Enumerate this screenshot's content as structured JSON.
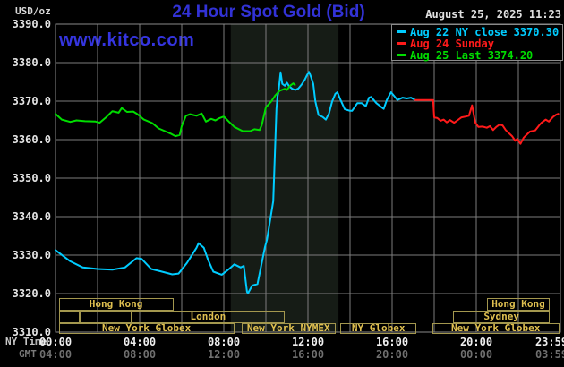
{
  "header": {
    "unit_label": "USD/oz",
    "title": "24 Hour Spot Gold (Bid)",
    "datetime": "August 25, 2025 11:23",
    "watermark": "www.kitco.com"
  },
  "legend": {
    "items": [
      {
        "label": "Aug 22 NY close 3370.30",
        "color": "#00ccff"
      },
      {
        "label": "Aug 24 Sunday",
        "color": "#ff1a1a"
      },
      {
        "label": "Aug 25 Last 3374.20",
        "color": "#00dd00"
      }
    ]
  },
  "axes": {
    "y_ticks": [
      "3390.0",
      "3380.0",
      "3370.0",
      "3360.0",
      "3350.0",
      "3340.0",
      "3330.0",
      "3320.0",
      "3310.0"
    ],
    "x_tick_hours": [
      0,
      4,
      8,
      12,
      16,
      20,
      23.983
    ],
    "x_rows": [
      {
        "label": "NY Time",
        "ticks": [
          "00:00",
          "04:00",
          "08:00",
          "12:00",
          "16:00",
          "20:00",
          "23:59"
        ]
      },
      {
        "label": "GMT",
        "ticks": [
          "04:00",
          "08:00",
          "12:00",
          "16:00",
          "20:00",
          "00:00",
          "03:59"
        ]
      }
    ]
  },
  "sessions": [
    {
      "row": 0,
      "label": "Hong Kong",
      "start_h": 0.15,
      "end_h": 5.6
    },
    {
      "row": 0,
      "label": "Hong Kong",
      "start_h": 20.5,
      "end_h": 23.5
    },
    {
      "row": 1,
      "label": "",
      "start_h": 0.15,
      "end_h": 1.15
    },
    {
      "row": 1,
      "label": "",
      "start_h": 1.15,
      "end_h": 3.6
    },
    {
      "row": 1,
      "label": "London",
      "start_h": 3.6,
      "end_h": 10.9
    },
    {
      "row": 1,
      "label": "Sydney",
      "start_h": 18.9,
      "end_h": 23.5
    },
    {
      "row": 2,
      "label": "New York Globex",
      "start_h": 0.15,
      "end_h": 8.5
    },
    {
      "row": 2,
      "label": "New York NYMEX",
      "start_h": 8.85,
      "end_h": 13.3
    },
    {
      "row": 2,
      "label": "NY Globex",
      "start_h": 13.55,
      "end_h": 17.15
    },
    {
      "row": 2,
      "label": "New York Globex",
      "start_h": 17.9,
      "end_h": 23.95
    }
  ],
  "colors": {
    "grid": "#7d7d7d",
    "plot_border": "#8a8a8a",
    "highlight_band": "#161c16",
    "title_blue": "#3232d6"
  },
  "chart_data": {
    "type": "line",
    "title": "24 Hour Spot Gold (Bid)",
    "xlabel": "NY Time",
    "ylabel": "USD/oz",
    "x_axis": {
      "range_hours": [
        0,
        24
      ],
      "gridline_every_hours": 2,
      "label_every_hours": 4
    },
    "y_axis": {
      "range": [
        3310,
        3390
      ],
      "gridline_step": 10
    },
    "highlight_band_hours": [
      8.33,
      13.45
    ],
    "series": [
      {
        "name": "Aug 22 NY close 3370.30",
        "color": "#00ccff",
        "points": [
          [
            0,
            3331.3
          ],
          [
            0.7,
            3328.4
          ],
          [
            1.3,
            3326.8
          ],
          [
            2,
            3326.4
          ],
          [
            2.7,
            3326.2
          ],
          [
            3.3,
            3326.8
          ],
          [
            3.85,
            3329.2
          ],
          [
            4.1,
            3329
          ],
          [
            4.55,
            3326.4
          ],
          [
            5,
            3325.8
          ],
          [
            5.55,
            3325
          ],
          [
            5.85,
            3325.2
          ],
          [
            6.25,
            3328
          ],
          [
            6.7,
            3331.9
          ],
          [
            6.8,
            3333.1
          ],
          [
            7.05,
            3331.9
          ],
          [
            7.25,
            3328.8
          ],
          [
            7.5,
            3325.7
          ],
          [
            7.9,
            3324.9
          ],
          [
            8.25,
            3326.4
          ],
          [
            8.5,
            3327.6
          ],
          [
            8.8,
            3326.8
          ],
          [
            8.95,
            3327.2
          ],
          [
            9.1,
            3320.5
          ],
          [
            9.15,
            3320.1
          ],
          [
            9.35,
            3322.1
          ],
          [
            9.6,
            3322.5
          ],
          [
            9.95,
            3331.9
          ],
          [
            10.05,
            3334
          ],
          [
            10.35,
            3344
          ],
          [
            10.5,
            3368
          ],
          [
            10.55,
            3371
          ],
          [
            10.62,
            3373.5
          ],
          [
            10.7,
            3377.5
          ],
          [
            10.78,
            3374.5
          ],
          [
            10.9,
            3374
          ],
          [
            11,
            3374.8
          ],
          [
            11.1,
            3373.9
          ],
          [
            11.25,
            3373.2
          ],
          [
            11.4,
            3372.9
          ],
          [
            11.55,
            3373.3
          ],
          [
            11.7,
            3374.3
          ],
          [
            11.85,
            3375.6
          ],
          [
            11.95,
            3376.7
          ],
          [
            12.05,
            3377.6
          ],
          [
            12.15,
            3376.2
          ],
          [
            12.25,
            3374.5
          ],
          [
            12.35,
            3370
          ],
          [
            12.5,
            3366.4
          ],
          [
            12.7,
            3365.9
          ],
          [
            12.85,
            3365.2
          ],
          [
            13,
            3366.8
          ],
          [
            13.15,
            3369.9
          ],
          [
            13.3,
            3371.9
          ],
          [
            13.4,
            3372.3
          ],
          [
            13.55,
            3370.3
          ],
          [
            13.75,
            3367.9
          ],
          [
            14,
            3367.5
          ],
          [
            14.1,
            3367.5
          ],
          [
            14.35,
            3369.5
          ],
          [
            14.55,
            3369.5
          ],
          [
            14.75,
            3368.7
          ],
          [
            14.9,
            3370.9
          ],
          [
            15,
            3371.1
          ],
          [
            15.25,
            3369.5
          ],
          [
            15.5,
            3368.4
          ],
          [
            15.6,
            3368
          ],
          [
            15.75,
            3370.3
          ],
          [
            15.95,
            3372.3
          ],
          [
            16.1,
            3371.3
          ],
          [
            16.25,
            3370.3
          ],
          [
            16.5,
            3370.9
          ],
          [
            16.7,
            3370.7
          ],
          [
            16.9,
            3370.9
          ],
          [
            17.1,
            3370.3
          ]
        ]
      },
      {
        "name": "Aug 24 Sunday",
        "color": "#ff1a1a",
        "points": [
          [
            17.1,
            3370.3
          ],
          [
            17.95,
            3370.3
          ],
          [
            18,
            3365.8
          ],
          [
            18.15,
            3365.6
          ],
          [
            18.3,
            3364.9
          ],
          [
            18.45,
            3365.2
          ],
          [
            18.6,
            3364.5
          ],
          [
            18.75,
            3365.1
          ],
          [
            18.95,
            3364.4
          ],
          [
            19.1,
            3365
          ],
          [
            19.3,
            3365.8
          ],
          [
            19.5,
            3366
          ],
          [
            19.65,
            3366.2
          ],
          [
            19.8,
            3368.9
          ],
          [
            19.95,
            3364.5
          ],
          [
            20.1,
            3363.3
          ],
          [
            20.3,
            3363.4
          ],
          [
            20.5,
            3363.1
          ],
          [
            20.65,
            3363.5
          ],
          [
            20.8,
            3362.5
          ],
          [
            20.95,
            3363.3
          ],
          [
            21.1,
            3363.9
          ],
          [
            21.25,
            3363.7
          ],
          [
            21.4,
            3362.5
          ],
          [
            21.55,
            3361.7
          ],
          [
            21.7,
            3360.9
          ],
          [
            21.85,
            3359.7
          ],
          [
            21.95,
            3360.2
          ],
          [
            22.1,
            3358.9
          ],
          [
            22.25,
            3360.5
          ],
          [
            22.4,
            3361.3
          ],
          [
            22.55,
            3362.1
          ],
          [
            22.65,
            3362.2
          ],
          [
            22.8,
            3362.4
          ],
          [
            23,
            3363.8
          ],
          [
            23.1,
            3364.4
          ],
          [
            23.3,
            3365.2
          ],
          [
            23.45,
            3364.7
          ],
          [
            23.65,
            3365.9
          ],
          [
            23.8,
            3366.5
          ],
          [
            23.9,
            3366.7
          ]
        ]
      },
      {
        "name": "Aug 25 Last 3374.20",
        "color": "#00dd00",
        "points": [
          [
            0,
            3366.7
          ],
          [
            0.3,
            3365.2
          ],
          [
            0.7,
            3364.6
          ],
          [
            1,
            3365
          ],
          [
            1.4,
            3364.8
          ],
          [
            1.9,
            3364.7
          ],
          [
            2.1,
            3364.4
          ],
          [
            2.4,
            3365.8
          ],
          [
            2.7,
            3367.4
          ],
          [
            3,
            3367
          ],
          [
            3.15,
            3368.2
          ],
          [
            3.4,
            3367.2
          ],
          [
            3.7,
            3367.3
          ],
          [
            3.9,
            3366.6
          ],
          [
            4.2,
            3365.2
          ],
          [
            4.6,
            3364.3
          ],
          [
            4.9,
            3362.9
          ],
          [
            5.2,
            3362.2
          ],
          [
            5.5,
            3361.5
          ],
          [
            5.7,
            3360.9
          ],
          [
            5.9,
            3361.2
          ],
          [
            6,
            3363.5
          ],
          [
            6.2,
            3366.2
          ],
          [
            6.4,
            3366.6
          ],
          [
            6.7,
            3366.2
          ],
          [
            6.95,
            3366.8
          ],
          [
            7.15,
            3364.7
          ],
          [
            7.4,
            3365.4
          ],
          [
            7.6,
            3365
          ],
          [
            7.8,
            3365.6
          ],
          [
            8,
            3366
          ],
          [
            8.2,
            3364.9
          ],
          [
            8.5,
            3363.3
          ],
          [
            8.9,
            3362.2
          ],
          [
            9.25,
            3362.2
          ],
          [
            9.45,
            3362.7
          ],
          [
            9.7,
            3362.5
          ],
          [
            9.8,
            3363.7
          ],
          [
            10,
            3368.4
          ],
          [
            10.25,
            3369.9
          ],
          [
            10.45,
            3371.5
          ],
          [
            10.65,
            3372.7
          ],
          [
            10.9,
            3373.2
          ],
          [
            11,
            3372.9
          ],
          [
            11.15,
            3374
          ],
          [
            11.3,
            3374.6
          ],
          [
            11.38,
            3374.2
          ]
        ]
      }
    ]
  }
}
